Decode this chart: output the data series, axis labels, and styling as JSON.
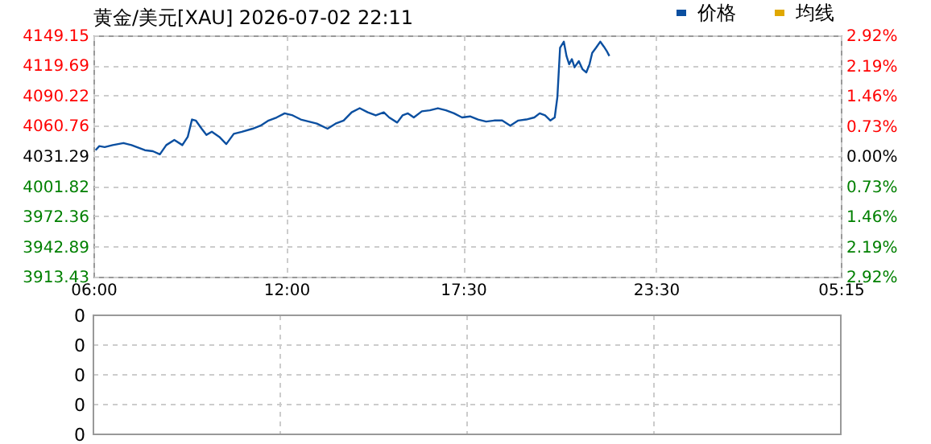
{
  "chart_data": [
    {
      "type": "line",
      "title": "黄金/美元[XAU] 2026-07-02 22:11",
      "legend": "top right",
      "grid": true,
      "xlim": [
        "--07-02T06:00",
        "--07-03T05:15"
      ],
      "xticks": [
        {
          "value": "--07-02T06:00",
          "label": "06:00"
        },
        {
          "value": "--07-02T12:00",
          "label": "12:00"
        },
        {
          "value": "--07-02T17:30",
          "label": "17:30"
        },
        {
          "value": "--07-02T23:30",
          "label": "23:30"
        },
        {
          "value": "--07-03T05:15",
          "label": "05:15"
        }
      ],
      "ylim": [
        3913.43,
        4149.15
      ],
      "yticks": [
        3913.43,
        3942.89,
        3972.36,
        4001.82,
        4031.29,
        4060.76,
        4090.22,
        4119.69,
        4149.15
      ],
      "y2lim": [
        -2.92,
        2.92
      ],
      "y2ticks": [
        {
          "value": -2.92,
          "label": "2.92%"
        },
        {
          "value": -2.19,
          "label": "2.19%"
        },
        {
          "value": -1.46,
          "label": "1.46%"
        },
        {
          "value": -0.73,
          "label": "0.73%"
        },
        {
          "value": 0,
          "label": "0.00%"
        },
        {
          "value": 0.73,
          "label": "0.73%"
        },
        {
          "value": 1.46,
          "label": "1.46%"
        },
        {
          "value": 2.19,
          "label": "2.19%"
        },
        {
          "value": 2.92,
          "label": "2.92%"
        }
      ],
      "series": [
        {
          "name": "价格",
          "color": "#0b4fa0",
          "x": [
            "--07-02T06:04",
            "--07-02T06:11",
            "--07-02T06:21",
            "--07-02T06:36",
            "--07-02T06:56",
            "--07-02T07:11",
            "--07-02T07:21",
            "--07-02T07:36",
            "--07-02T07:51",
            "--07-02T08:04",
            "--07-02T08:16",
            "--07-02T08:31",
            "--07-02T08:46",
            "--07-02T08:56",
            "--07-02T09:04",
            "--07-02T09:11",
            "--07-02T09:22",
            "--07-02T09:31",
            "--07-02T09:41",
            "--07-02T09:55",
            "--07-02T10:08",
            "--07-02T10:22",
            "--07-02T10:37",
            "--07-02T10:57",
            "--07-02T11:12",
            "--07-02T11:27",
            "--07-02T11:42",
            "--07-02T11:57",
            "--07-02T12:12",
            "--07-02T12:27",
            "--07-02T12:42",
            "--07-02T12:57",
            "--07-02T13:17",
            "--07-02T13:32",
            "--07-02T13:47",
            "--07-02T14:02",
            "--07-02T14:17",
            "--07-02T14:32",
            "--07-02T14:47",
            "--07-02T15:02",
            "--07-02T15:12",
            "--07-02T15:27",
            "--07-02T15:37",
            "--07-02T15:47",
            "--07-02T15:58",
            "--07-02T16:13",
            "--07-02T16:28",
            "--07-02T16:43",
            "--07-02T16:58",
            "--07-02T17:13",
            "--07-02T17:28",
            "--07-02T17:43",
            "--07-02T17:58",
            "--07-02T18:13",
            "--07-02T18:28",
            "--07-02T18:43",
            "--07-02T18:58",
            "--07-02T19:13",
            "--07-02T19:28",
            "--07-02T19:43",
            "--07-02T19:53",
            "--07-02T20:03",
            "--07-02T20:13",
            "--07-02T20:21",
            "--07-02T20:26",
            "--07-02T20:31",
            "--07-02T20:38",
            "--07-02T20:43",
            "--07-02T20:48",
            "--07-02T20:53",
            "--07-02T20:58",
            "--07-02T21:06",
            "--07-02T21:13",
            "--07-02T21:20",
            "--07-02T21:26",
            "--07-02T21:31",
            "--07-02T21:38",
            "--07-02T21:46",
            "--07-02T21:53",
            "--07-02T21:58",
            "--07-02T22:03"
          ],
          "values": [
            4037,
            4041,
            4040,
            4042,
            4044,
            4042,
            4040,
            4037,
            4036,
            4033,
            4042,
            4047,
            4042,
            4050,
            4067,
            4066,
            4058,
            4052,
            4055,
            4050,
            4043,
            4053,
            4055,
            4058,
            4061,
            4066,
            4069,
            4073,
            4071,
            4067,
            4065,
            4063,
            4058,
            4063,
            4066,
            4074,
            4078,
            4074,
            4071,
            4074,
            4069,
            4064,
            4071,
            4073,
            4069,
            4075,
            4076,
            4078,
            4076,
            4073,
            4069,
            4070,
            4067,
            4065,
            4066,
            4066,
            4061,
            4066,
            4067,
            4069,
            4073,
            4071,
            4066,
            4069,
            4089,
            4137,
            4143,
            4129,
            4121,
            4126,
            4118,
            4124,
            4116,
            4113,
            4121,
            4132,
            4137,
            4143,
            4138,
            4134,
            4129
          ]
        },
        {
          "name": "均线",
          "color": "#e0a800"
        }
      ]
    },
    {
      "type": "other",
      "annotations": [
        "0",
        "0",
        "0",
        "0",
        "0"
      ]
    }
  ]
}
